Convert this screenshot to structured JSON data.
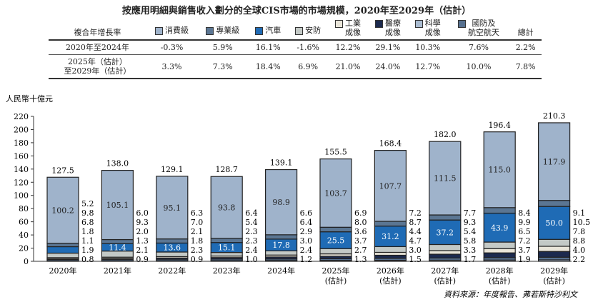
{
  "title": "按應用明細與銷售收入劃分的全球CIS市場的市場規模，2020年至2029年（估計）",
  "table": {
    "row_header": "複合年增長率",
    "columns": [
      "消費級",
      "專業級",
      "汽車",
      "安防",
      "工業\n成像",
      "醫療\n成像",
      "科學\n成像",
      "國防及\n航空航天",
      "總計"
    ],
    "rows": [
      {
        "label": "2020年至2024年",
        "values": [
          "-0.3%",
          "5.9%",
          "16.1%",
          "-1.6%",
          "12.2%",
          "29.1%",
          "10.3%",
          "7.6%",
          "2.2%"
        ]
      },
      {
        "label": "2025年（估計）\n至2029年（估計）",
        "values": [
          "3.3%",
          "7.3%",
          "18.4%",
          "6.9%",
          "21.0%",
          "24.0%",
          "12.7%",
          "10.0%",
          "7.8%"
        ]
      }
    ]
  },
  "source": "資料來源：年度報告、弗若斯特沙利文",
  "chart_data": {
    "type": "bar",
    "stacked": true,
    "ylabel": "人民幣十億元",
    "ylim": [
      0,
      220
    ],
    "yticks": [
      0,
      20,
      40,
      60,
      80,
      100,
      120,
      140,
      160,
      180,
      200,
      220
    ],
    "categories": [
      "2020年",
      "2021年",
      "2022年",
      "2023年",
      "2024年",
      "2025年\n(估計)",
      "2026年\n(估計)",
      "2027年\n(估計)",
      "2028年\n(估計)",
      "2029年\n(估計)"
    ],
    "totals": [
      127.5,
      138.0,
      129.1,
      128.7,
      139.1,
      155.5,
      168.4,
      182.0,
      196.4,
      210.3
    ],
    "series": [
      {
        "name": "科學成像",
        "color": "#a9bbd0",
        "values": [
          0.8,
          0.9,
          0.9,
          1.0,
          1.2,
          1.3,
          1.5,
          1.7,
          1.9,
          2.2
        ]
      },
      {
        "name": "國防及航空航天",
        "color": "#56708f",
        "values": [
          1.9,
          2.1,
          2.3,
          2.4,
          2.4,
          2.7,
          3.0,
          3.3,
          3.7,
          4.0
        ]
      },
      {
        "name": "醫療成像",
        "color": "#1c2a4e",
        "values": [
          1.1,
          1.3,
          1.8,
          2.3,
          3.0,
          3.7,
          4.7,
          5.8,
          7.2,
          8.8
        ]
      },
      {
        "name": "工業成像",
        "color": "#e9e5d9",
        "values": [
          1.8,
          2.0,
          2.1,
          2.3,
          2.9,
          3.6,
          4.4,
          5.4,
          6.5,
          7.8
        ]
      },
      {
        "name": "安防",
        "color": "#c3c9c6",
        "values": [
          6.8,
          9.3,
          7.0,
          5.4,
          6.4,
          8.0,
          8.7,
          9.3,
          9.9,
          10.5
        ]
      },
      {
        "name": "汽車",
        "color": "#1f6bb5",
        "values": [
          9.8,
          11.4,
          13.6,
          15.1,
          17.8,
          25.5,
          31.2,
          37.2,
          43.9,
          50.0
        ]
      },
      {
        "name": "專業級",
        "color": "#5b7693",
        "values": [
          5.2,
          6.0,
          6.3,
          6.4,
          6.6,
          6.9,
          7.2,
          7.7,
          8.4,
          9.1
        ]
      },
      {
        "name": "消費級",
        "color": "#9fb3cb",
        "values": [
          100.2,
          105.1,
          95.1,
          93.8,
          98.9,
          103.7,
          107.7,
          111.5,
          115.0,
          117.9
        ]
      }
    ],
    "grid": false,
    "legend": "top"
  }
}
